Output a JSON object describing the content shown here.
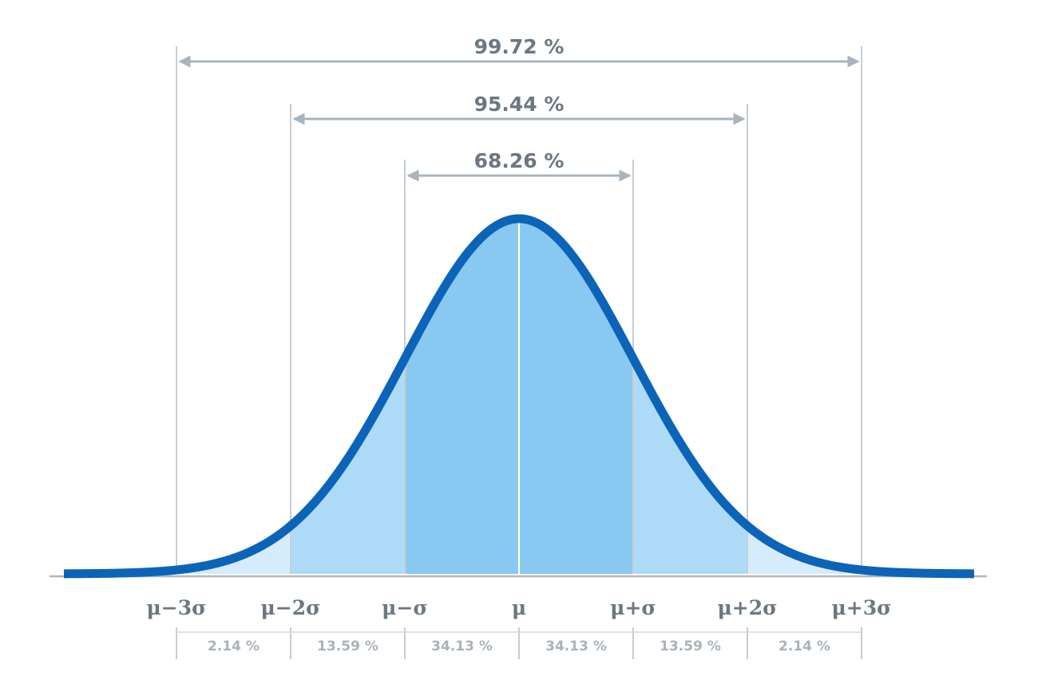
{
  "chart_data": {
    "type": "area",
    "title": "",
    "mean_sd": [
      0,
      1
    ],
    "x_range": [
      -4,
      4
    ],
    "curve_color": "#0b64b8",
    "band_colors": {
      "inner": "#88c8f1",
      "middle": "#addaf6",
      "outer": "#d4ecfb"
    },
    "boundaries": [
      -3,
      -2,
      -1,
      0,
      1,
      2,
      3
    ],
    "axis_labels": [
      "μ−3σ",
      "μ−2σ",
      "μ−σ",
      "μ",
      "μ+σ",
      "μ+2σ",
      "μ+3σ"
    ],
    "segments": [
      {
        "from": -3,
        "to": -2,
        "label": "2.14 %",
        "value": 2.14
      },
      {
        "from": -2,
        "to": -1,
        "label": "13.59 %",
        "value": 13.59
      },
      {
        "from": -1,
        "to": 0,
        "label": "34.13 %",
        "value": 34.13
      },
      {
        "from": 0,
        "to": 1,
        "label": "34.13 %",
        "value": 34.13
      },
      {
        "from": 1,
        "to": 2,
        "label": "13.59 %",
        "value": 13.59
      },
      {
        "from": 2,
        "to": 3,
        "label": "2.14 %",
        "value": 2.14
      }
    ],
    "ranges": [
      {
        "sigma": 1,
        "label": "68.26 %",
        "value": 68.26
      },
      {
        "sigma": 2,
        "label": "95.44 %",
        "value": 95.44
      },
      {
        "sigma": 3,
        "label": "99.72 %",
        "value": 99.72
      }
    ]
  }
}
